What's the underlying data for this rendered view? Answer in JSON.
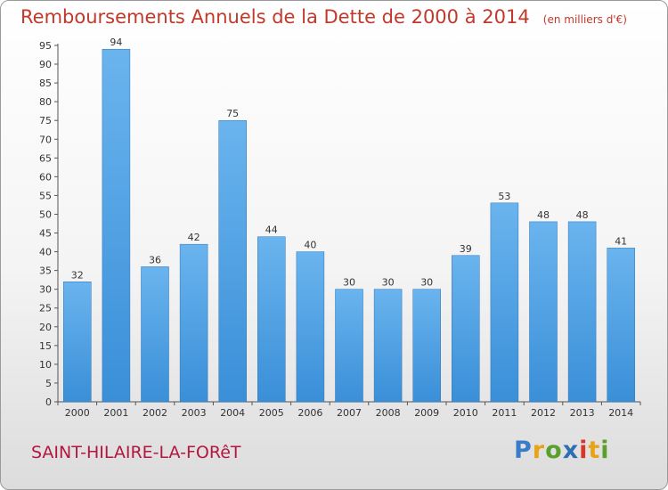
{
  "chart_data": {
    "type": "bar",
    "title": "Remboursements Annuels de la Dette de 2000 à 2014",
    "subtitle": "(en milliers d'€)",
    "categories": [
      "2000",
      "2001",
      "2002",
      "2003",
      "2004",
      "2005",
      "2006",
      "2007",
      "2008",
      "2009",
      "2010",
      "2011",
      "2012",
      "2013",
      "2014"
    ],
    "values": [
      32,
      94,
      36,
      42,
      75,
      44,
      40,
      30,
      30,
      30,
      39,
      53,
      48,
      48,
      41
    ],
    "xlabel": "",
    "ylabel": "",
    "ylim": [
      0,
      95
    ],
    "yticks": [
      0,
      5,
      10,
      15,
      20,
      25,
      30,
      35,
      40,
      45,
      50,
      55,
      60,
      65,
      70,
      75,
      80,
      85,
      90,
      95
    ],
    "grid": false,
    "legend": "none",
    "bar_color": "#3a8fd8",
    "bar_color_light": "#6ab4ee"
  },
  "footer": {
    "town": "SAINT-HILAIRE-LA-FORêT",
    "brand": {
      "letters": [
        "P",
        "r",
        "o",
        "x",
        "i",
        "t",
        "i"
      ],
      "colors": [
        "#3a7cc9",
        "#e8a317",
        "#5aa02c",
        "#2f6db5",
        "#d9362b",
        "#e8a317",
        "#5aa02c"
      ]
    }
  }
}
